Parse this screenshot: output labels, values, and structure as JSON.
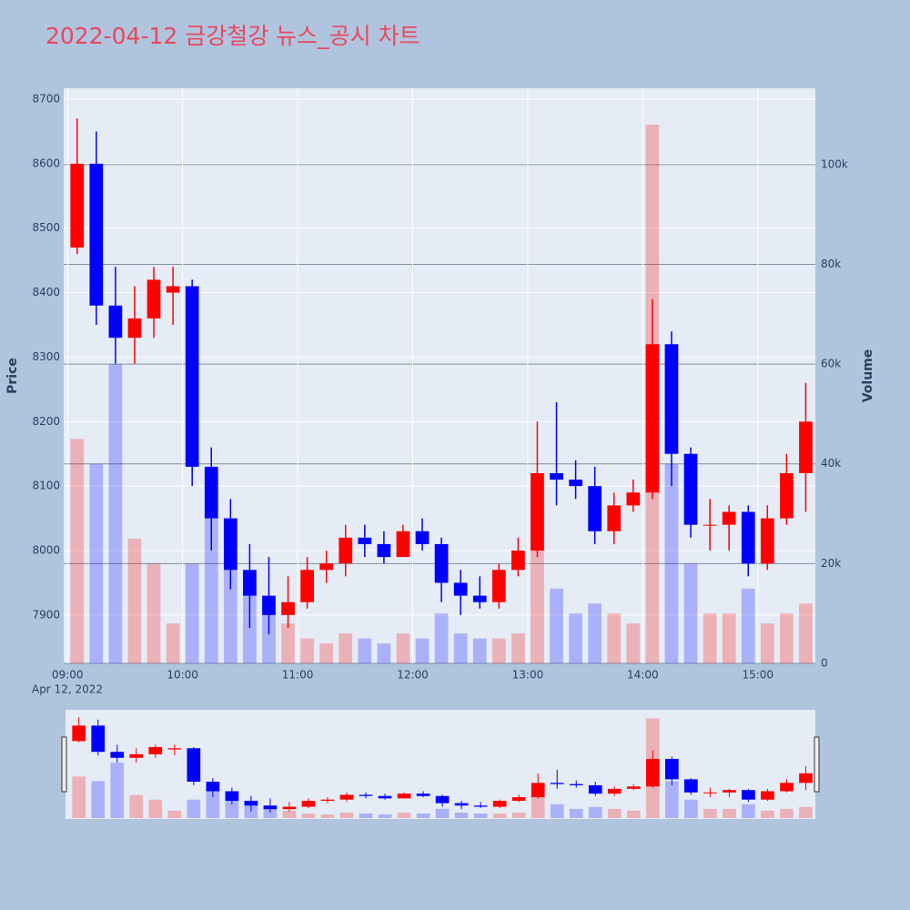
{
  "chart_data": {
    "type": "candlestick",
    "title": "2022-04-12 금강철강 뉴스_공시 차트",
    "x_date_label": "Apr 12, 2022",
    "y_title": "Price",
    "y2_title": "Volume",
    "x": [
      "09:00",
      "09:10",
      "09:20",
      "09:30",
      "09:40",
      "09:50",
      "10:00",
      "10:10",
      "10:20",
      "10:30",
      "10:40",
      "10:50",
      "11:00",
      "11:10",
      "11:20",
      "11:30",
      "11:40",
      "11:50",
      "12:00",
      "12:10",
      "12:20",
      "12:30",
      "12:40",
      "12:50",
      "13:00",
      "13:10",
      "13:20",
      "13:30",
      "13:40",
      "13:50",
      "14:00",
      "14:10",
      "14:20",
      "14:30",
      "14:40",
      "14:50",
      "15:00",
      "15:10",
      "15:20"
    ],
    "open": [
      8470,
      8600,
      8380,
      8330,
      8360,
      8400,
      8410,
      8130,
      8050,
      7970,
      7930,
      7900,
      7920,
      7970,
      7980,
      8020,
      8010,
      7990,
      8030,
      8010,
      7950,
      7930,
      7920,
      7970,
      8000,
      8120,
      8110,
      8100,
      8030,
      8070,
      8090,
      8320,
      8150,
      8040,
      8040,
      8060,
      7980,
      8050,
      8120
    ],
    "high": [
      8670,
      8650,
      8440,
      8410,
      8440,
      8440,
      8420,
      8160,
      8080,
      8010,
      7990,
      7960,
      7990,
      8000,
      8040,
      8040,
      8030,
      8040,
      8050,
      8020,
      7970,
      7960,
      7980,
      8020,
      8200,
      8230,
      8140,
      8130,
      8090,
      8110,
      8390,
      8340,
      8160,
      8080,
      8070,
      8070,
      8070,
      8150,
      8260
    ],
    "low": [
      8460,
      8350,
      8290,
      8290,
      8330,
      8350,
      8100,
      8000,
      7940,
      7880,
      7870,
      7880,
      7910,
      7950,
      7960,
      7990,
      7980,
      7990,
      8000,
      7920,
      7900,
      7910,
      7910,
      7960,
      7990,
      8070,
      8080,
      8010,
      8010,
      8060,
      8080,
      8100,
      8020,
      8000,
      8000,
      7960,
      7970,
      8040,
      8060
    ],
    "close": [
      8600,
      8380,
      8330,
      8360,
      8420,
      8410,
      8130,
      8050,
      7970,
      7930,
      7900,
      7920,
      7970,
      7980,
      8020,
      8010,
      7990,
      8030,
      8010,
      7950,
      7930,
      7920,
      7970,
      8000,
      8120,
      8110,
      8100,
      8030,
      8070,
      8090,
      8320,
      8150,
      8040,
      8040,
      8060,
      7980,
      8050,
      8120,
      8200
    ],
    "volume": [
      45000,
      40000,
      60000,
      25000,
      20000,
      8000,
      20000,
      30000,
      20000,
      15000,
      10000,
      8000,
      5000,
      4000,
      6000,
      5000,
      4000,
      6000,
      5000,
      10000,
      6000,
      5000,
      5000,
      6000,
      25000,
      15000,
      10000,
      12000,
      10000,
      8000,
      108000,
      40000,
      20000,
      10000,
      10000,
      15000,
      8000,
      10000,
      12000
    ],
    "increasing_color": "#ff0000",
    "decreasing_color": "#0000ff",
    "xlim": [
      "08:58",
      "15:30"
    ],
    "xticks": [
      "09:00",
      "10:00",
      "11:00",
      "12:00",
      "13:00",
      "14:00",
      "15:00"
    ],
    "ylim": [
      7825,
      8717
    ],
    "yticks": [
      7900,
      8000,
      8100,
      8200,
      8300,
      8400,
      8500,
      8600,
      8700
    ],
    "y2lim": [
      0,
      115300
    ],
    "y2ticks": [
      0,
      {
        "value": 20000,
        "label": "20k"
      },
      {
        "value": 40000,
        "label": "40k"
      },
      {
        "value": 60000,
        "label": "60k"
      },
      {
        "value": 80000,
        "label": "80k"
      },
      {
        "value": 100000,
        "label": "100k"
      }
    ],
    "grid": true,
    "range_slider": true
  }
}
